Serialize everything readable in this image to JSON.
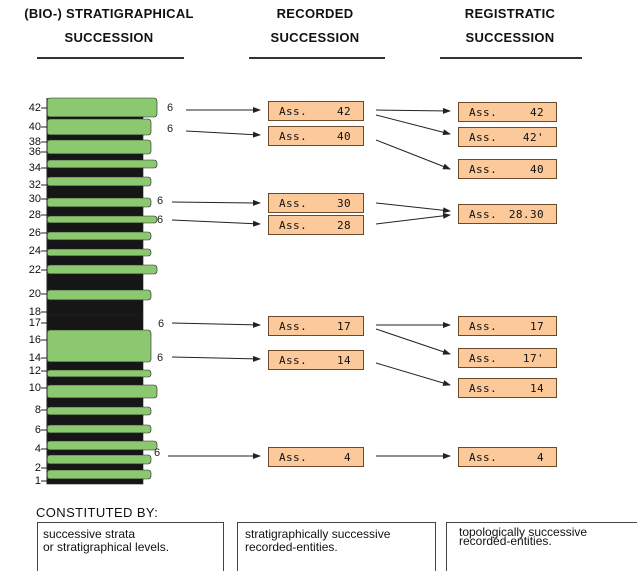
{
  "headers": {
    "stratigraphical": [
      "(BIO-)  STRATIGRAPHICAL",
      "SUCCESSION"
    ],
    "recorded": [
      "RECORDED",
      "SUCCESSION"
    ],
    "registratic": [
      "REGISTRATIC",
      "SUCCESSION"
    ]
  },
  "column_ticks": [
    "42",
    "40",
    "38",
    "36",
    "34",
    "32",
    "30",
    "28",
    "26",
    "24",
    "22",
    "20",
    "18",
    "17",
    "16",
    "14",
    "12",
    "10",
    "8",
    "6",
    "4",
    "2",
    "1"
  ],
  "fossil_glyph": "6",
  "recorded_boxes": [
    {
      "label": "Ass.",
      "value": "42"
    },
    {
      "label": "Ass.",
      "value": "40"
    },
    {
      "label": "Ass.",
      "value": "30"
    },
    {
      "label": "Ass.",
      "value": "28"
    },
    {
      "label": "Ass.",
      "value": "17"
    },
    {
      "label": "Ass.",
      "value": "14"
    },
    {
      "label": "Ass.",
      "value": "4"
    }
  ],
  "registratic_boxes": [
    {
      "label": "Ass.",
      "value": "42"
    },
    {
      "label": "Ass.",
      "value": "42'"
    },
    {
      "label": "Ass.",
      "value": "40"
    },
    {
      "label": "Ass.",
      "value": "28.30"
    },
    {
      "label": "Ass.",
      "value": "17"
    },
    {
      "label": "Ass.",
      "value": "17'"
    },
    {
      "label": "Ass.",
      "value": "14"
    },
    {
      "label": "Ass.",
      "value": "4"
    }
  ],
  "constituted_by": "CONSTITUTED   BY:",
  "footer": {
    "strata": [
      "successive strata",
      "or stratigraphical levels."
    ],
    "recorded": [
      "stratigraphically successive",
      "recorded-entities."
    ],
    "registratic": [
      "topologically successive",
      "recorded-entities."
    ]
  },
  "colors": {
    "layer_green": "#8cc870",
    "layer_dark": "#161616",
    "box_fill": "#fbc99a"
  }
}
